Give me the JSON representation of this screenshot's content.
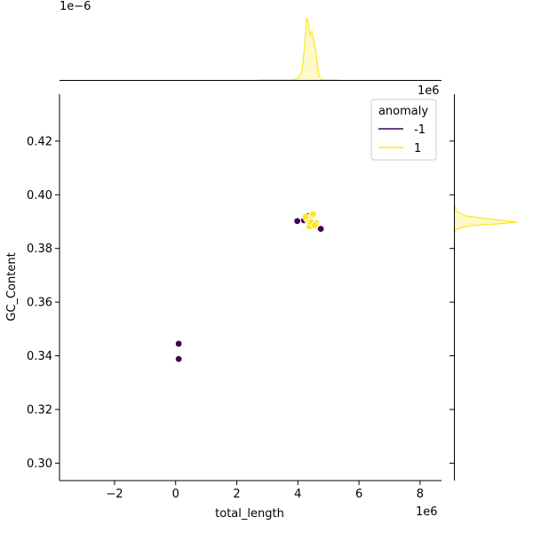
{
  "chart_data": {
    "type": "scatter",
    "xlabel": "total_length",
    "ylabel": "GC_Content",
    "x_offset_label": "1e6",
    "top_marginal_offset_label": "1e−6",
    "right_marginal_offset_label": "1e6",
    "xlim": [
      -3800000,
      8700000
    ],
    "ylim": [
      0.2935,
      0.4375
    ],
    "x_ticks": [
      -2000000,
      0,
      2000000,
      4000000,
      6000000,
      8000000
    ],
    "x_tick_labels": [
      "−2",
      "0",
      "2",
      "4",
      "6",
      "8"
    ],
    "y_ticks": [
      0.3,
      0.32,
      0.34,
      0.36,
      0.38,
      0.4,
      0.42
    ],
    "y_tick_labels": [
      "0.30",
      "0.32",
      "0.34",
      "0.36",
      "0.38",
      "0.40",
      "0.42"
    ],
    "legend": {
      "title": "anomaly",
      "placement": "top-right",
      "entries": [
        {
          "label": "-1",
          "color": "#440154"
        },
        {
          "label": "1",
          "color": "#fde725"
        }
      ]
    },
    "series": [
      {
        "name": "-1",
        "color": "#440154",
        "points": [
          {
            "x": 100000,
            "y": 0.3445
          },
          {
            "x": 100000,
            "y": 0.3388
          },
          {
            "x": 3980000,
            "y": 0.3902
          },
          {
            "x": 4750000,
            "y": 0.3873
          },
          {
            "x": 4300000,
            "y": 0.3921
          },
          {
            "x": 4200000,
            "y": 0.3905
          }
        ]
      },
      {
        "name": "1",
        "color": "#fde725",
        "points": [
          {
            "x": 4350000,
            "y": 0.39
          },
          {
            "x": 4400000,
            "y": 0.3915
          },
          {
            "x": 4450000,
            "y": 0.389
          },
          {
            "x": 4500000,
            "y": 0.3928
          },
          {
            "x": 4380000,
            "y": 0.3882
          },
          {
            "x": 4600000,
            "y": 0.3895
          },
          {
            "x": 4300000,
            "y": 0.391
          },
          {
            "x": 4420000,
            "y": 0.3898
          },
          {
            "x": 4250000,
            "y": 0.3918
          },
          {
            "x": 4550000,
            "y": 0.3886
          }
        ]
      }
    ]
  }
}
